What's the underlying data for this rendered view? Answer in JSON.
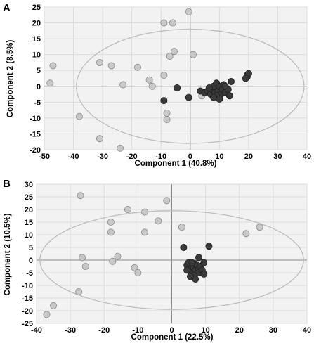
{
  "colors": {
    "plot_bg": "#f2f2f2",
    "grid": "#dcdcdc",
    "ellipse": "#bdbdbd",
    "axis_line": "#8c8c8c",
    "light_point": "#c8c8c8",
    "light_stroke": "#8a8a8a",
    "dark_point": "#3a3a3a",
    "dark_stroke": "#1e1e1e"
  },
  "chart_data": [
    {
      "panel": "A",
      "type": "scatter",
      "xlabel": "Component  1 (40.8%)",
      "ylabel": "Component  2 (8.5%)",
      "xlim": [
        -50,
        40
      ],
      "ylim": [
        -20,
        25
      ],
      "xticks": [
        -50,
        -40,
        -30,
        -20,
        -10,
        0,
        10,
        20,
        30,
        40
      ],
      "yticks": [
        -20,
        -15,
        -10,
        -5,
        0,
        5,
        10,
        15,
        20,
        25
      ],
      "grid": true,
      "ellipse": {
        "cx": 0,
        "cy": 0,
        "rx": 39,
        "ry": 18
      },
      "series": [
        {
          "color": "light",
          "points": [
            [
              -47,
              6.5
            ],
            [
              -48,
              1
            ],
            [
              -38,
              -9.5
            ],
            [
              -31,
              7.5
            ],
            [
              -27,
              6.5
            ],
            [
              -31,
              -16.5
            ],
            [
              -24,
              -19.5
            ],
            [
              -23,
              0.5
            ],
            [
              -18,
              6
            ],
            [
              -14,
              2
            ],
            [
              -13,
              0
            ],
            [
              -9,
              3.5
            ],
            [
              -9,
              20
            ],
            [
              -6,
              20
            ],
            [
              -7,
              9.5
            ],
            [
              -5.5,
              11
            ],
            [
              -8,
              -8.5
            ],
            [
              -8,
              -10.5
            ],
            [
              -0.5,
              23.5
            ],
            [
              1,
              10
            ],
            [
              4,
              -3
            ]
          ]
        },
        {
          "color": "dark",
          "points": [
            [
              -9,
              -4.5
            ],
            [
              -4.5,
              -0.5
            ],
            [
              -0.5,
              -3.5
            ],
            [
              3.5,
              -1.5
            ],
            [
              5,
              -2
            ],
            [
              6,
              -1.5
            ],
            [
              7,
              -2.5
            ],
            [
              7.5,
              -1
            ],
            [
              8,
              0
            ],
            [
              8.5,
              -2
            ],
            [
              9,
              1
            ],
            [
              9.5,
              -1.5
            ],
            [
              10,
              0
            ],
            [
              10.5,
              -2.5
            ],
            [
              11,
              -1
            ],
            [
              11.5,
              0.5
            ],
            [
              12,
              -2
            ],
            [
              13,
              -1
            ],
            [
              13.5,
              -3
            ],
            [
              9,
              -3
            ],
            [
              10,
              -4
            ],
            [
              8,
              -3.5
            ],
            [
              6.5,
              -0.5
            ],
            [
              12,
              0
            ],
            [
              14,
              1.5
            ],
            [
              19.5,
              3
            ],
            [
              19.5,
              3.5
            ],
            [
              20,
              4
            ],
            [
              19,
              2.5
            ]
          ]
        }
      ]
    },
    {
      "panel": "B",
      "type": "scatter",
      "xlabel": "Component  1 (22.5%)",
      "ylabel": "Component  2 (10.5%)",
      "xlim": [
        -40,
        40
      ],
      "ylim": [
        -25,
        30
      ],
      "xticks": [
        -40,
        -30,
        -20,
        -10,
        0,
        10,
        20,
        30,
        40
      ],
      "yticks": [
        -25,
        -20,
        -15,
        -10,
        -5,
        0,
        5,
        10,
        15,
        20,
        25,
        30
      ],
      "grid": true,
      "ellipse": {
        "cx": 0,
        "cy": 0,
        "rx": 39,
        "ry": 19.5
      },
      "series": [
        {
          "color": "light",
          "points": [
            [
              -37,
              -21.5
            ],
            [
              -35,
              -18
            ],
            [
              -27.5,
              -12.5
            ],
            [
              -27,
              25.5
            ],
            [
              -26.5,
              1
            ],
            [
              -25.5,
              -2.5
            ],
            [
              -18,
              15
            ],
            [
              -18,
              11
            ],
            [
              -17.5,
              -0.5
            ],
            [
              -16,
              1.5
            ],
            [
              -13,
              20
            ],
            [
              -11,
              -3
            ],
            [
              -10,
              -5
            ],
            [
              -8,
              19
            ],
            [
              -8,
              11
            ],
            [
              -4,
              15.5
            ],
            [
              -1.5,
              23.5
            ],
            [
              3,
              13
            ],
            [
              22,
              10.5
            ],
            [
              26,
              13
            ]
          ]
        },
        {
          "color": "dark",
          "points": [
            [
              3.5,
              5
            ],
            [
              11,
              5.5
            ],
            [
              4.5,
              -2
            ],
            [
              5,
              -3.5
            ],
            [
              5.5,
              -4.5
            ],
            [
              6,
              -2.5
            ],
            [
              6,
              -5.5
            ],
            [
              6.5,
              -3
            ],
            [
              7,
              -4
            ],
            [
              7,
              -1.5
            ],
            [
              7.5,
              -2
            ],
            [
              8,
              -3.5
            ],
            [
              8,
              -5
            ],
            [
              8.5,
              -2.5
            ],
            [
              9,
              -4
            ],
            [
              5,
              -1
            ],
            [
              6,
              -1
            ],
            [
              8,
              1
            ],
            [
              9.5,
              -1
            ],
            [
              6.5,
              -6
            ],
            [
              7,
              -7.5
            ],
            [
              5.5,
              -6.5
            ],
            [
              4.5,
              -4
            ],
            [
              9.5,
              -5.5
            ]
          ]
        }
      ]
    }
  ]
}
